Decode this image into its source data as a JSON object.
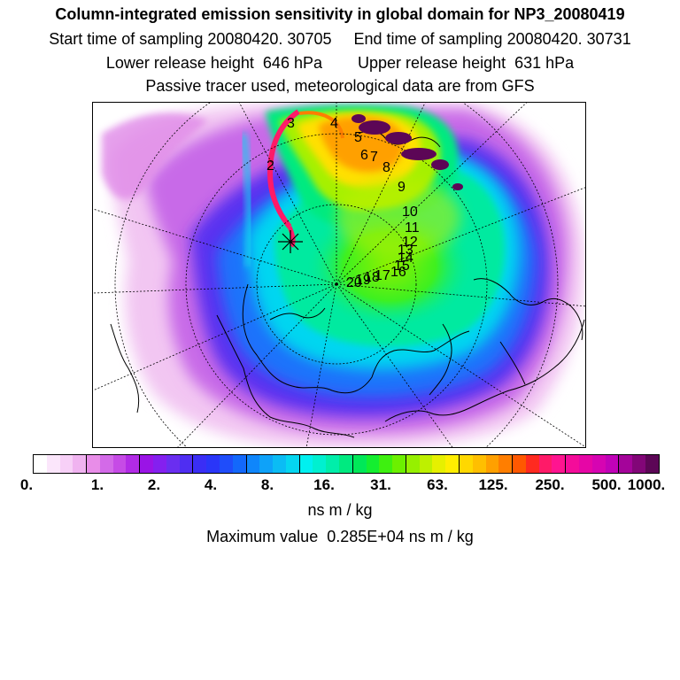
{
  "header": {
    "title": "Column-integrated emission sensitivity in global domain for NP3_20080419",
    "sampling_line": "Start time of sampling 20080420. 30705     End time of sampling 20080420. 30731",
    "release_line": "Lower release height  646 hPa        Upper release height  631 hPa",
    "tracer_line": "Passive tracer used, meteorological data are from GFS"
  },
  "map": {
    "projection": "polar stereographic, north pole",
    "time_labels": [
      "2",
      "3",
      "4",
      "5",
      "6",
      "7",
      "8",
      "9",
      "10",
      "11",
      "12",
      "13",
      "14",
      "15",
      "16",
      "17",
      "18",
      "19",
      "20"
    ],
    "release_marker": "x-cross"
  },
  "colorbar": {
    "tick_labels": [
      "0.",
      "1.",
      "2.",
      "4.",
      "8.",
      "16.",
      "31.",
      "63.",
      "125.",
      "250.",
      "500.",
      "1000."
    ],
    "colors": [
      "#ffffff",
      "#fbe6fb",
      "#f7d0f7",
      "#f0b3f0",
      "#e88de8",
      "#d36ae8",
      "#c64be6",
      "#b22be6",
      "#9a14e6",
      "#8420ef",
      "#6a2ef0",
      "#4f2ef2",
      "#3a2ef5",
      "#2a36f8",
      "#1f4dfa",
      "#1368fb",
      "#0f86fb",
      "#0ea2f9",
      "#0bbcf4",
      "#05d6f0",
      "#00f0f0",
      "#00f0d0",
      "#00eeaa",
      "#00ea80",
      "#00e858",
      "#14ee30",
      "#3ef010",
      "#6cf000",
      "#96f000",
      "#bef000",
      "#e6f000",
      "#ffee00",
      "#ffd800",
      "#ffbf00",
      "#ffa000",
      "#ff7e00",
      "#ff5800",
      "#ff2a20",
      "#ff1a68",
      "#ff1490",
      "#f40c9a",
      "#e606a6",
      "#d604b2",
      "#c002b8",
      "#a4049a",
      "#820678",
      "#5c0656"
    ],
    "units": "ns m / kg",
    "max_value": "Maximum value  0.285E+04 ns m / kg"
  }
}
